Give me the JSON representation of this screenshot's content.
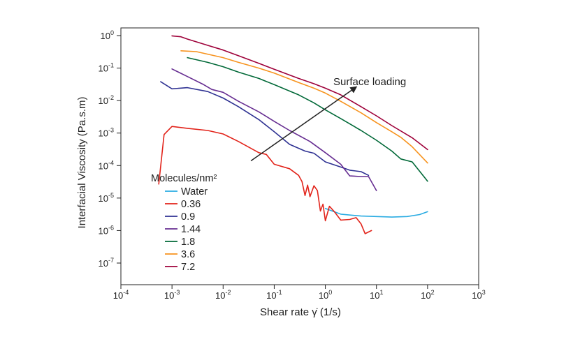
{
  "chart_data": {
    "type": "line",
    "xlabel": "Shear rate γ̇ (1/s)",
    "ylabel": "Interfacial Viscosity (Pa.s.m)",
    "x_scale": "log",
    "y_scale": "log",
    "xlim": [
      0.0001,
      1000
    ],
    "ylim": [
      1e-08,
      2
    ],
    "x_ticks": [
      {
        "value": 0.0001,
        "base": "10",
        "exp": "-4"
      },
      {
        "value": 0.001,
        "base": "10",
        "exp": "-3"
      },
      {
        "value": 0.01,
        "base": "10",
        "exp": "-2"
      },
      {
        "value": 0.1,
        "base": "10",
        "exp": "-1"
      },
      {
        "value": 1,
        "base": "10",
        "exp": "0"
      },
      {
        "value": 10,
        "base": "10",
        "exp": "1"
      },
      {
        "value": 100,
        "base": "10",
        "exp": "2"
      },
      {
        "value": 1000,
        "base": "10",
        "exp": "3"
      }
    ],
    "y_ticks": [
      {
        "value": 1,
        "base": "10",
        "exp": "0"
      },
      {
        "value": 0.1,
        "base": "10",
        "exp": "-1"
      },
      {
        "value": 0.01,
        "base": "10",
        "exp": "-2"
      },
      {
        "value": 0.001,
        "base": "10",
        "exp": "-3"
      },
      {
        "value": 0.0001,
        "base": "10",
        "exp": "-4"
      },
      {
        "value": 1e-05,
        "base": "10",
        "exp": "-5"
      },
      {
        "value": 1e-06,
        "base": "10",
        "exp": "-6"
      },
      {
        "value": 1e-07,
        "base": "10",
        "exp": "-7"
      }
    ],
    "grid": false,
    "legend": {
      "title": "Molecules/nm²",
      "placement": "left-center"
    },
    "annotation": {
      "text": "Surface loading",
      "arrow_from": {
        "x": 0.035,
        "y": 0.00014
      },
      "arrow_to": {
        "x": 4.0,
        "y": 0.026
      }
    },
    "series": [
      {
        "name": "Water",
        "color": "#29abe2",
        "points": [
          [
            1.0,
            4.8e-06
          ],
          [
            2.0,
            3.2e-06
          ],
          [
            5.0,
            2.8e-06
          ],
          [
            10.0,
            2.7e-06
          ],
          [
            20.0,
            2.6e-06
          ],
          [
            40.0,
            2.7e-06
          ],
          [
            70.0,
            3.1e-06
          ],
          [
            100.0,
            3.8e-06
          ]
        ]
      },
      {
        "name": "0.36",
        "color": "#e2231a",
        "points": [
          [
            0.00055,
            2.7e-05
          ],
          [
            0.0007,
            0.0009
          ],
          [
            0.001,
            0.0016
          ],
          [
            0.002,
            0.0014
          ],
          [
            0.005,
            0.0012
          ],
          [
            0.01,
            0.00094
          ],
          [
            0.02,
            0.00055
          ],
          [
            0.05,
            0.00025
          ],
          [
            0.07,
            0.00022
          ],
          [
            0.1,
            0.00011
          ],
          [
            0.2,
            8e-05
          ],
          [
            0.3,
            5e-05
          ],
          [
            0.35,
            3.2e-05
          ],
          [
            0.4,
            1.2e-05
          ],
          [
            0.45,
            2.5e-05
          ],
          [
            0.5,
            1.1e-05
          ],
          [
            0.6,
            2.4e-05
          ],
          [
            0.7,
            1.7e-05
          ],
          [
            0.8,
            4e-06
          ],
          [
            0.9,
            6.5e-06
          ],
          [
            1.0,
            2e-06
          ],
          [
            1.2,
            5.6e-06
          ],
          [
            1.5,
            3.8e-06
          ],
          [
            2.0,
            2.1e-06
          ],
          [
            3.0,
            2.2e-06
          ],
          [
            4.0,
            2.5e-06
          ],
          [
            5.0,
            1.6e-06
          ],
          [
            6.0,
            8e-07
          ],
          [
            8.0,
            1e-06
          ]
        ]
      },
      {
        "name": "0.9",
        "color": "#2e3192",
        "points": [
          [
            0.0006,
            0.038
          ],
          [
            0.001,
            0.023
          ],
          [
            0.002,
            0.025
          ],
          [
            0.005,
            0.019
          ],
          [
            0.01,
            0.012
          ],
          [
            0.02,
            0.0065
          ],
          [
            0.05,
            0.0026
          ],
          [
            0.1,
            0.0011
          ],
          [
            0.2,
            0.00045
          ],
          [
            0.4,
            0.00028
          ],
          [
            0.6,
            0.00024
          ],
          [
            1.0,
            0.00013
          ],
          [
            2.0,
            9e-05
          ],
          [
            3.0,
            7.2e-05
          ],
          [
            5.0,
            6.5e-05
          ],
          [
            7.0,
            5e-05
          ]
        ]
      },
      {
        "name": "1.44",
        "color": "#662d91",
        "points": [
          [
            0.001,
            0.094
          ],
          [
            0.002,
            0.055
          ],
          [
            0.004,
            0.032
          ],
          [
            0.006,
            0.022
          ],
          [
            0.01,
            0.018
          ],
          [
            0.02,
            0.0095
          ],
          [
            0.05,
            0.0045
          ],
          [
            0.1,
            0.0023
          ],
          [
            0.2,
            0.0012
          ],
          [
            0.5,
            0.00055
          ],
          [
            1.0,
            0.00025
          ],
          [
            2.0,
            0.00011
          ],
          [
            3.0,
            4.8e-05
          ],
          [
            5.0,
            4.6e-05
          ],
          [
            7.0,
            4.6e-05
          ],
          [
            10.0,
            1.7e-05
          ]
        ]
      },
      {
        "name": "1.8",
        "color": "#006837",
        "points": [
          [
            0.002,
            0.21
          ],
          [
            0.005,
            0.15
          ],
          [
            0.01,
            0.11
          ],
          [
            0.02,
            0.075
          ],
          [
            0.05,
            0.048
          ],
          [
            0.1,
            0.031
          ],
          [
            0.3,
            0.015
          ],
          [
            0.6,
            0.0085
          ],
          [
            1.0,
            0.0052
          ],
          [
            2.0,
            0.0028
          ],
          [
            5.0,
            0.0012
          ],
          [
            10.0,
            0.0006
          ],
          [
            20.0,
            0.00028
          ],
          [
            30.0,
            0.00016
          ],
          [
            50.0,
            0.00013
          ],
          [
            100.0,
            3.3e-05
          ]
        ]
      },
      {
        "name": "3.6",
        "color": "#f7931e",
        "points": [
          [
            0.0015,
            0.34
          ],
          [
            0.003,
            0.32
          ],
          [
            0.01,
            0.21
          ],
          [
            0.02,
            0.15
          ],
          [
            0.05,
            0.1
          ],
          [
            0.1,
            0.07
          ],
          [
            0.3,
            0.036
          ],
          [
            0.6,
            0.024
          ],
          [
            1.0,
            0.017
          ],
          [
            2.0,
            0.0095
          ],
          [
            5.0,
            0.0042
          ],
          [
            10.0,
            0.0021
          ],
          [
            20.0,
            0.0011
          ],
          [
            30.0,
            0.00074
          ],
          [
            50.0,
            0.00038
          ],
          [
            100.0,
            0.00012
          ]
        ]
      },
      {
        "name": "7.2",
        "color": "#9e0039",
        "points": [
          [
            0.001,
            0.98
          ],
          [
            0.0015,
            0.92
          ],
          [
            0.002,
            0.78
          ],
          [
            0.005,
            0.5
          ],
          [
            0.01,
            0.36
          ],
          [
            0.02,
            0.24
          ],
          [
            0.05,
            0.14
          ],
          [
            0.1,
            0.092
          ],
          [
            0.3,
            0.048
          ],
          [
            0.6,
            0.033
          ],
          [
            1.0,
            0.024
          ],
          [
            2.0,
            0.015
          ],
          [
            5.0,
            0.0065
          ],
          [
            10.0,
            0.0034
          ],
          [
            20.0,
            0.0017
          ],
          [
            50.0,
            0.00072
          ],
          [
            100.0,
            0.00031
          ]
        ]
      }
    ]
  }
}
